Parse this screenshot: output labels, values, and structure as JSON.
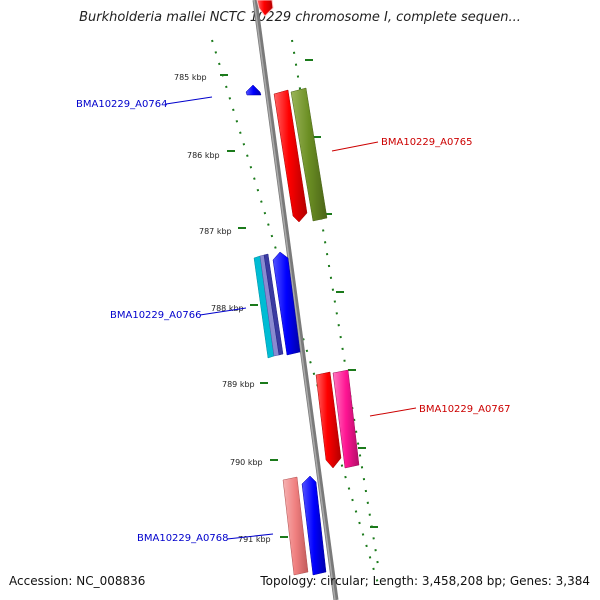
{
  "title": "Burkholderia mallei NCTC 10229 chromosome I, complete sequen...",
  "footer": {
    "accession": "Accession: NC_008836",
    "summary": "Topology: circular; Length: 3,458,208 bp; Genes: 3,384"
  },
  "ticks": [
    "785 kbp",
    "786 kbp",
    "787 kbp",
    "788 kbp",
    "789 kbp",
    "790 kbp",
    "791 kbp"
  ],
  "gene_labels": [
    {
      "id": "BMA10229_A0764",
      "color": "#0000cc"
    },
    {
      "id": "BMA10229_A0765",
      "color": "#cc0000"
    },
    {
      "id": "BMA10229_A0766",
      "color": "#0000cc"
    },
    {
      "id": "BMA10229_A0767",
      "color": "#cc0000"
    },
    {
      "id": "BMA10229_A0768",
      "color": "#0000cc"
    }
  ],
  "colors": {
    "backbone": "#888888",
    "tick_green": "#1b7a1b",
    "red": "#ff0000",
    "olive": "#6b8e23",
    "blue": "#0000ff",
    "cyan": "#00bcd4",
    "pink": "#ff1493",
    "salmon": "#f08080"
  }
}
